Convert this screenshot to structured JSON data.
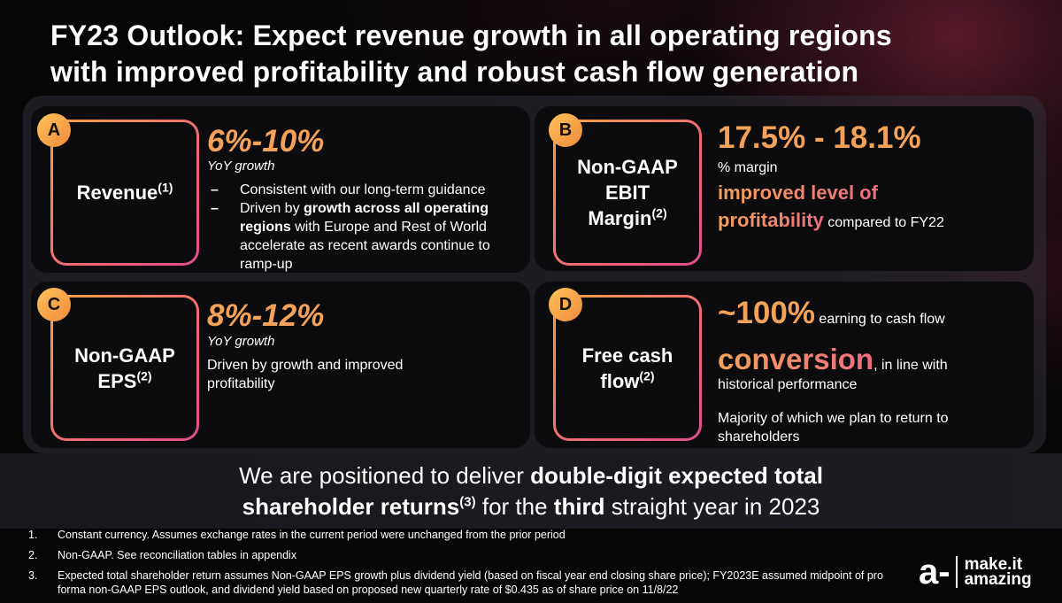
{
  "title": {
    "line1": "FY23 Outlook: Expect revenue growth in all operating regions",
    "line2": "with improved profitability and robust cash flow generation"
  },
  "cards": {
    "a": {
      "badge": "A",
      "label": "Revenue",
      "label_sup": "(1)",
      "headline": "6%-10%",
      "subhead": "YoY growth",
      "bullet1": "Consistent with our long-term guidance",
      "bullet2_pre": "Driven by ",
      "bullet2_bold1": "growth across all operating",
      "bullet2_bold2": "regions",
      "bullet2_post": " with Europe and Rest of World accelerate as recent awards continue to ramp-up"
    },
    "b": {
      "badge": "B",
      "label_line1": "Non-GAAP",
      "label_line2": "EBIT",
      "label_line3": "Margin",
      "label_sup": "(2)",
      "headline": "17.5% - 18.1%",
      "subhead": "% margin",
      "highlight1": "improved level of",
      "highlight2": "profitability",
      "trail": " compared to FY22"
    },
    "c": {
      "badge": "C",
      "label_line1": "Non-GAAP",
      "label_line2": "EPS",
      "label_sup": "(2)",
      "headline": "8%-12%",
      "subhead": "YoY growth",
      "body": " Driven by growth and improved profitability"
    },
    "d": {
      "badge": "D",
      "label_line1": "Free cash",
      "label_line2": "flow",
      "label_sup": "(2)",
      "headline": "~100%",
      "head_trail": " earning to cash flow",
      "highlight": "conversion",
      "highlight_trail": ", in line with",
      "line3": "historical performance",
      "note": "Majority of which we plan to return to shareholders"
    }
  },
  "tagline": {
    "p1": "We are positioned to deliver ",
    "b1": "double-digit expected total",
    "b2": "shareholder returns",
    "sup": "(3)",
    "p2": " for the ",
    "b3": "third",
    "p3": " straight year in 2023"
  },
  "footnotes": [
    {
      "num": "1.",
      "text": "Constant currency. Assumes exchange rates in the current period were unchanged from the prior period"
    },
    {
      "num": "2.",
      "text": "Non-GAAP. See reconciliation tables in appendix"
    },
    {
      "num": "3.",
      "text": "Expected total shareholder return assumes Non-GAAP EPS growth plus dividend yield (based on fiscal year end closing share price); FY2023E assumed midpoint of pro forma non-GAAP EPS outlook, and dividend yield based on proposed new quarterly rate of $0.435 as of share price on 11/8/22"
    }
  ],
  "logo": {
    "mark": "a-",
    "line1": "make.it",
    "line2": "amazing"
  },
  "colors": {
    "accent_orange": "#f4a259",
    "accent_pink": "#ee6d80",
    "badge": "#f6a64b"
  }
}
